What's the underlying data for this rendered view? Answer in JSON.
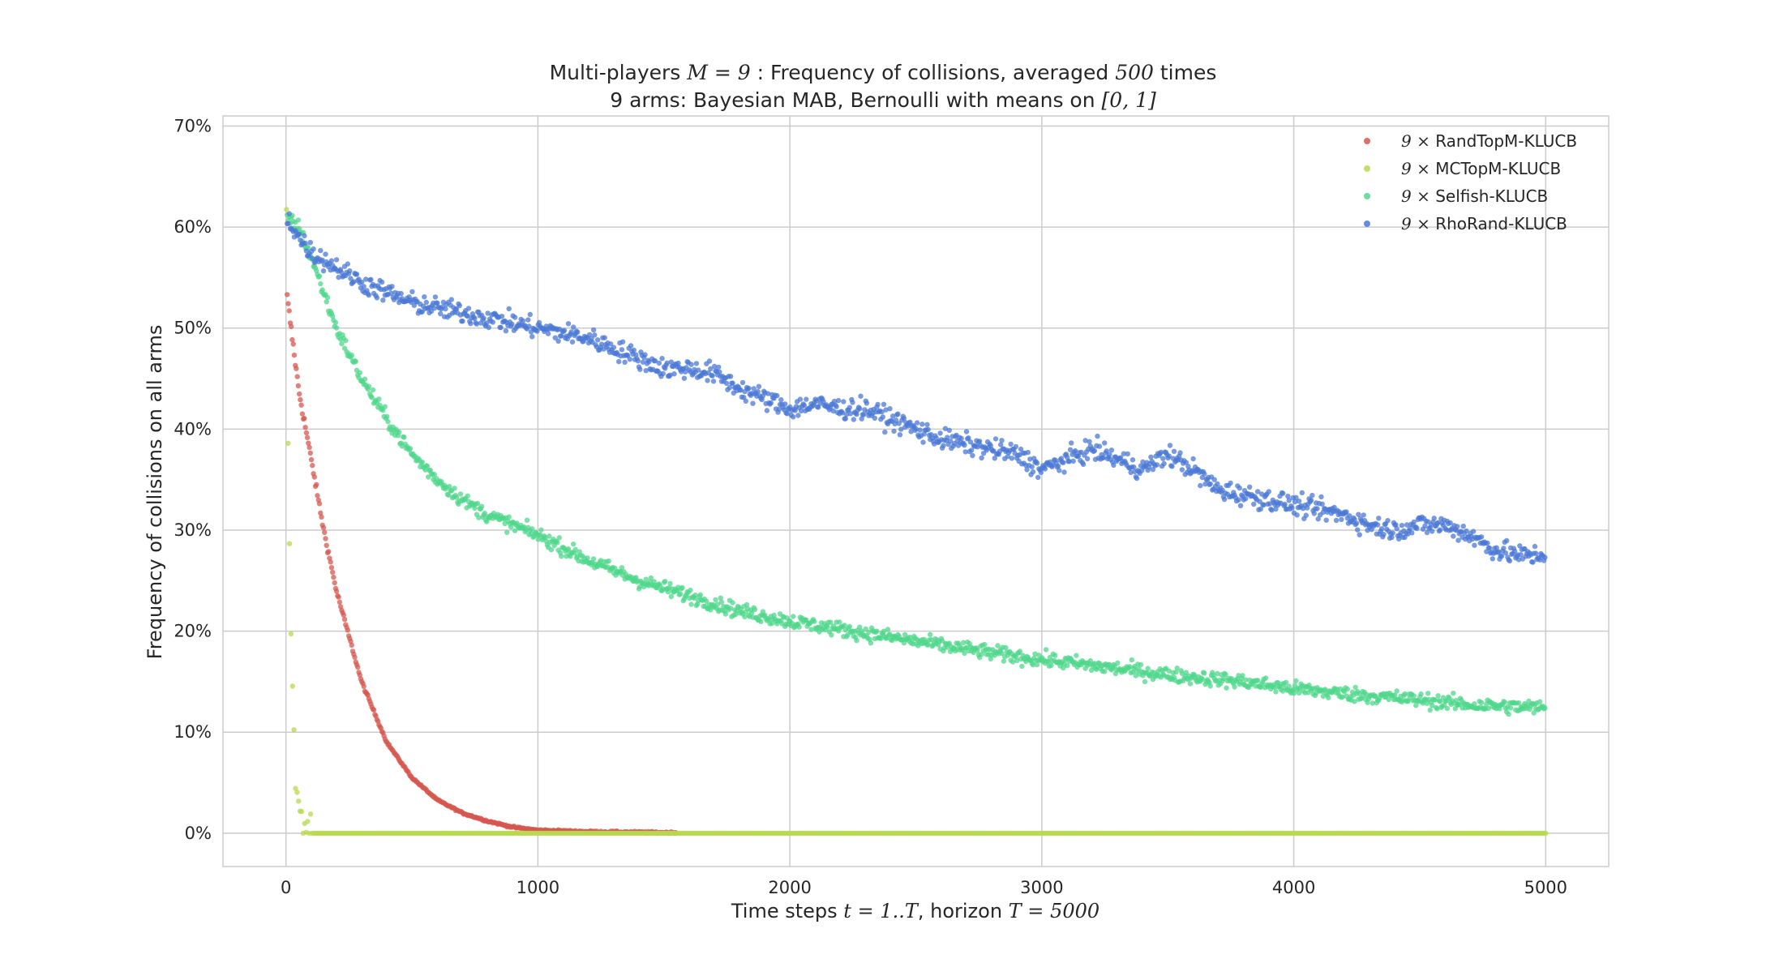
{
  "chart_data": {
    "type": "scatter",
    "title_line1_pre": "Multi-players",
    "title_line1_math1": "M = 9",
    "title_line1_mid": ": Frequency of collisions, averaged",
    "title_line1_math2": "500",
    "title_line1_post": "times",
    "title_line2_pre": "9 arms: Bayesian MAB, Bernoulli with means on",
    "title_line2_math": "[0, 1]",
    "xlabel_pre": "Time steps",
    "xlabel_math1": "t = 1..T",
    "xlabel_mid": ", horizon",
    "xlabel_math2": "T = 5000",
    "ylabel": "Frequency of collisions on all arms",
    "xlim": [
      -250,
      5250
    ],
    "ylim": [
      -0.033,
      0.71
    ],
    "xticks": [
      0,
      1000,
      2000,
      3000,
      4000,
      5000
    ],
    "xtick_labels": [
      "0",
      "1000",
      "2000",
      "3000",
      "4000",
      "5000"
    ],
    "yticks": [
      0,
      0.1,
      0.2,
      0.3,
      0.4,
      0.5,
      0.6,
      0.7
    ],
    "ytick_labels": [
      "0%",
      "10%",
      "20%",
      "30%",
      "40%",
      "50%",
      "60%",
      "70%"
    ],
    "grid": true,
    "legend_position": "top-right",
    "series": [
      {
        "name": "RandTopM-KLUCB",
        "legend_prefix": "9 ×",
        "color": "#d6574f",
        "points": [
          [
            5,
            0.53
          ],
          [
            20,
            0.5
          ],
          [
            50,
            0.44
          ],
          [
            100,
            0.37
          ],
          [
            150,
            0.3
          ],
          [
            200,
            0.24
          ],
          [
            300,
            0.15
          ],
          [
            400,
            0.09
          ],
          [
            500,
            0.055
          ],
          [
            600,
            0.033
          ],
          [
            700,
            0.02
          ],
          [
            800,
            0.012
          ],
          [
            900,
            0.006
          ],
          [
            1000,
            0.003
          ],
          [
            1200,
            0.0015
          ],
          [
            1550,
            0.0005
          ]
        ],
        "x_end": 1550
      },
      {
        "name": "MCTopM-KLUCB",
        "legend_prefix": "9 ×",
        "color": "#b7d94d",
        "points": [
          [
            2,
            0.62
          ],
          [
            5,
            0.45
          ],
          [
            10,
            0.35
          ],
          [
            20,
            0.2
          ],
          [
            30,
            0.11
          ],
          [
            40,
            0.05
          ],
          [
            55,
            0.015
          ],
          [
            75,
            0.003
          ],
          [
            100,
            0.0
          ],
          [
            5000,
            0.0
          ]
        ],
        "x_end": 5000
      },
      {
        "name": "Selfish-KLUCB",
        "legend_prefix": "9 ×",
        "color": "#4fd78b",
        "points": [
          [
            5,
            0.61
          ],
          [
            50,
            0.6
          ],
          [
            100,
            0.57
          ],
          [
            200,
            0.5
          ],
          [
            300,
            0.45
          ],
          [
            400,
            0.41
          ],
          [
            500,
            0.375
          ],
          [
            600,
            0.35
          ],
          [
            700,
            0.33
          ],
          [
            800,
            0.315
          ],
          [
            900,
            0.305
          ],
          [
            1000,
            0.295
          ],
          [
            1200,
            0.27
          ],
          [
            1400,
            0.25
          ],
          [
            1600,
            0.235
          ],
          [
            1800,
            0.22
          ],
          [
            2000,
            0.21
          ],
          [
            2300,
            0.198
          ],
          [
            2600,
            0.186
          ],
          [
            2900,
            0.175
          ],
          [
            3200,
            0.166
          ],
          [
            3500,
            0.157
          ],
          [
            3800,
            0.15
          ],
          [
            4000,
            0.143
          ],
          [
            4300,
            0.136
          ],
          [
            4500,
            0.132
          ],
          [
            4700,
            0.127
          ],
          [
            5000,
            0.124
          ]
        ],
        "x_end": 5000
      },
      {
        "name": "RhoRand-KLUCB",
        "legend_prefix": "9 ×",
        "color": "#4b78d6",
        "points": [
          [
            5,
            0.61
          ],
          [
            50,
            0.59
          ],
          [
            100,
            0.575
          ],
          [
            200,
            0.56
          ],
          [
            300,
            0.545
          ],
          [
            400,
            0.535
          ],
          [
            500,
            0.525
          ],
          [
            600,
            0.52
          ],
          [
            700,
            0.515
          ],
          [
            800,
            0.51
          ],
          [
            900,
            0.505
          ],
          [
            1000,
            0.5
          ],
          [
            1100,
            0.495
          ],
          [
            1200,
            0.49
          ],
          [
            1300,
            0.48
          ],
          [
            1400,
            0.47
          ],
          [
            1500,
            0.46
          ],
          [
            1600,
            0.46
          ],
          [
            1700,
            0.455
          ],
          [
            1800,
            0.44
          ],
          [
            1900,
            0.43
          ],
          [
            2000,
            0.42
          ],
          [
            2100,
            0.425
          ],
          [
            2200,
            0.42
          ],
          [
            2300,
            0.42
          ],
          [
            2400,
            0.41
          ],
          [
            2500,
            0.4
          ],
          [
            2600,
            0.39
          ],
          [
            2700,
            0.385
          ],
          [
            2800,
            0.38
          ],
          [
            2900,
            0.375
          ],
          [
            3000,
            0.36
          ],
          [
            3100,
            0.37
          ],
          [
            3200,
            0.38
          ],
          [
            3300,
            0.37
          ],
          [
            3400,
            0.36
          ],
          [
            3500,
            0.375
          ],
          [
            3600,
            0.36
          ],
          [
            3700,
            0.34
          ],
          [
            3800,
            0.335
          ],
          [
            3900,
            0.33
          ],
          [
            4000,
            0.325
          ],
          [
            4100,
            0.32
          ],
          [
            4200,
            0.315
          ],
          [
            4300,
            0.305
          ],
          [
            4400,
            0.3
          ],
          [
            4500,
            0.305
          ],
          [
            4600,
            0.305
          ],
          [
            4700,
            0.295
          ],
          [
            4800,
            0.28
          ],
          [
            4900,
            0.275
          ],
          [
            5000,
            0.275
          ]
        ],
        "x_end": 5000
      }
    ]
  }
}
